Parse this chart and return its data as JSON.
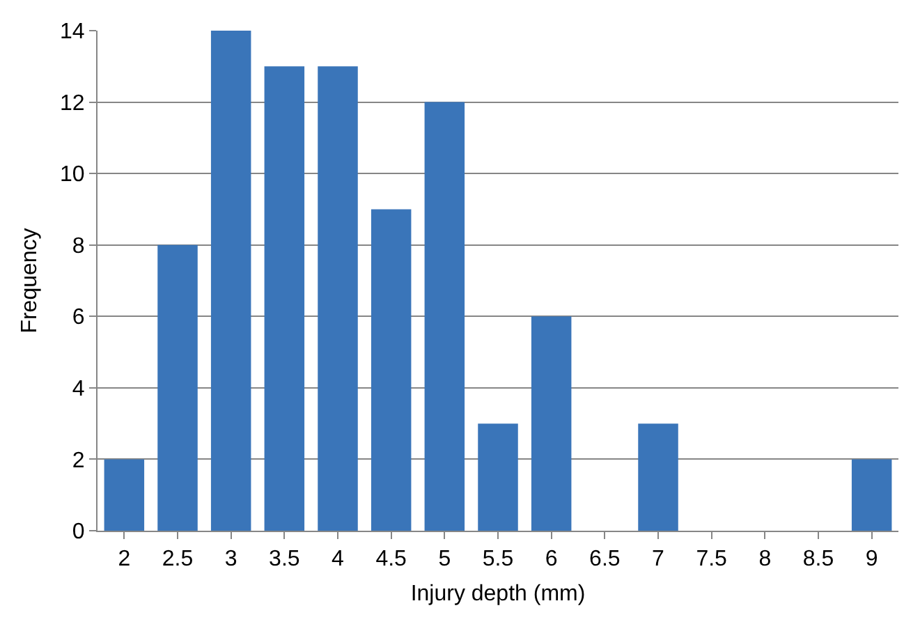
{
  "chart_data": {
    "type": "bar",
    "categories": [
      "2",
      "2.5",
      "3",
      "3.5",
      "4",
      "4.5",
      "5",
      "5.5",
      "6",
      "6.5",
      "7",
      "7.5",
      "8",
      "8.5",
      "9"
    ],
    "values": [
      2,
      8,
      14,
      13,
      13,
      9,
      12,
      3,
      6,
      0,
      3,
      0,
      0,
      0,
      2
    ],
    "color": "#3a75b9",
    "xlabel": "Injury depth (mm)",
    "ylabel": "Frequency",
    "ylim": [
      0,
      14
    ],
    "yticks": [
      0,
      2,
      4,
      6,
      8,
      10,
      12,
      14
    ],
    "grid": "y",
    "legend": false
  }
}
